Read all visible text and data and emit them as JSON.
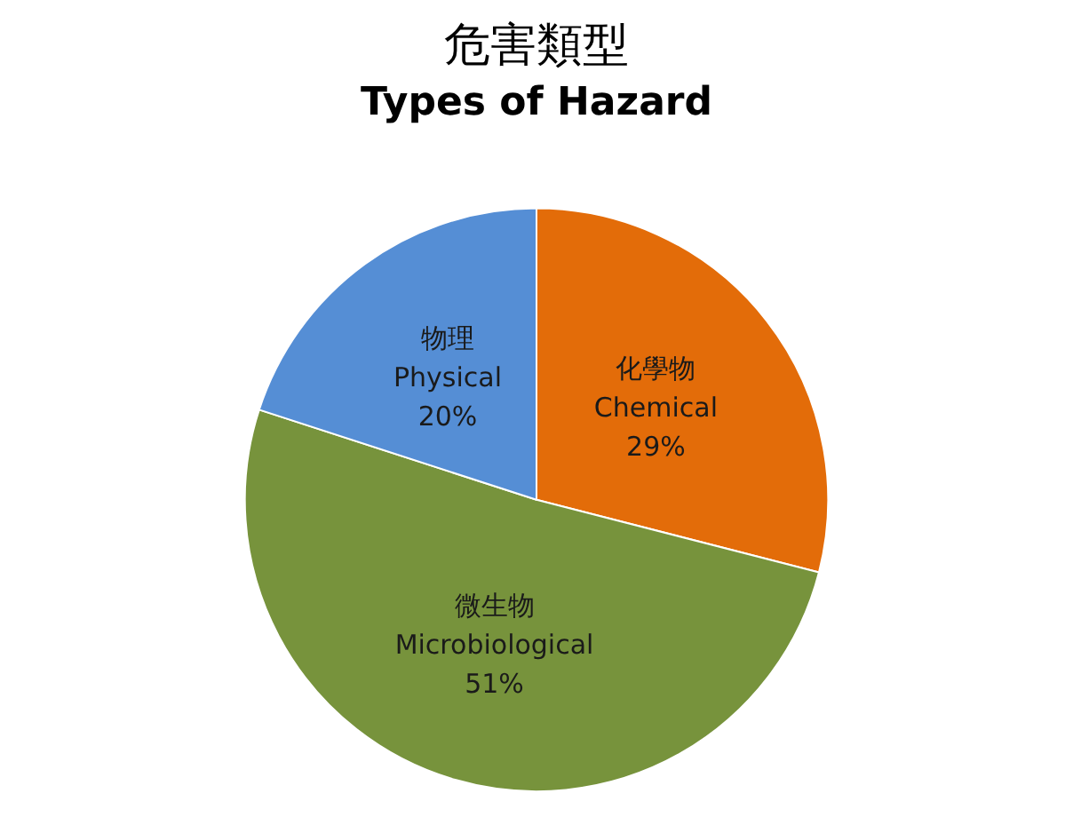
{
  "chart_data": {
    "type": "pie",
    "title": "危害類型",
    "subtitle": "Types of Hazard",
    "categories": [
      "化學物\nChemical",
      "微生物\nMicrobiological",
      "物理\nPhysical"
    ],
    "values": [
      29,
      51,
      20
    ],
    "colors": [
      "#e36c09",
      "#77933c",
      "#558ed5"
    ],
    "value_labels": [
      "29%",
      "51%",
      "20%"
    ],
    "legend": false
  }
}
